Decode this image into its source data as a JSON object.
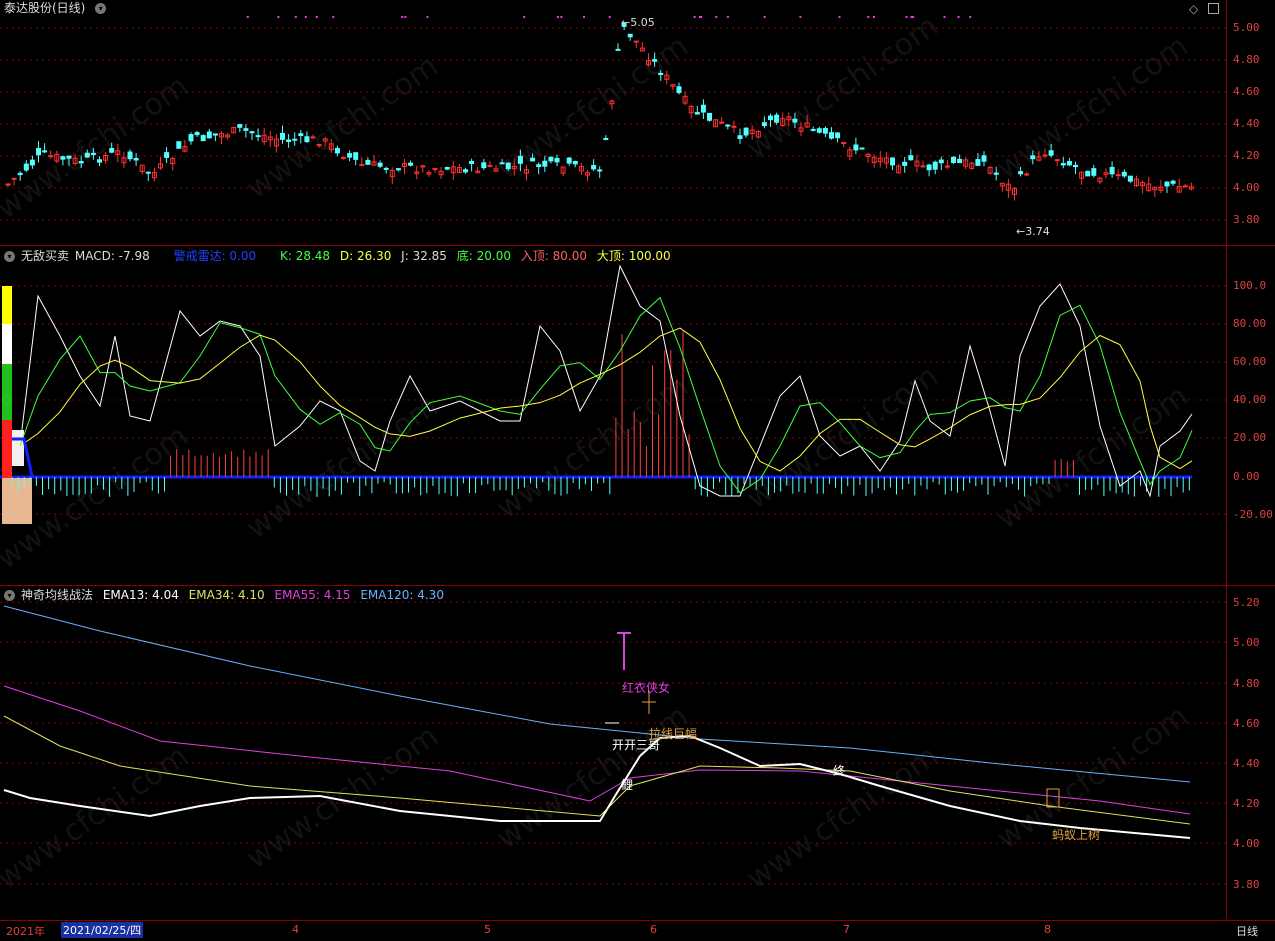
{
  "price_panel": {
    "title": "泰达股份(日线)",
    "ticks": [
      "5.00",
      "4.80",
      "4.60",
      "4.40",
      "4.20",
      "4.00",
      "3.80"
    ],
    "high_label": "5.05",
    "low_label": "3.74"
  },
  "indicator_panel": {
    "name": "无敌买卖",
    "macd": "MACD: -7.98",
    "radar": "警戒雷达: 0.00",
    "k": "K: 28.48",
    "d": "D: 26.30",
    "j": "J: 32.85",
    "di": "底: 20.00",
    "ru": "入顶: 80.00",
    "da": "大顶: 100.00",
    "ticks": [
      "100.0",
      "80.00",
      "60.00",
      "40.00",
      "20.00",
      "0.00",
      "-20.00"
    ]
  },
  "ema_panel": {
    "name": "神奇均线战法",
    "ema13": "EMA13: 4.04",
    "ema34": "EMA34: 4.10",
    "ema55": "EMA55: 4.15",
    "ema120": "EMA120: 4.30",
    "ticks": [
      "5.20",
      "5.00",
      "4.80",
      "4.60",
      "4.40",
      "4.20",
      "4.00",
      "3.80"
    ],
    "annotations": {
      "hongyi": "红衣侠女",
      "kaichuang": "开开三哥",
      "dao": "鲤",
      "zhong": "终",
      "mayi": "蚂蚁上树",
      "zhaju": "拉线巨幅"
    }
  },
  "bottom_bar": {
    "year": "2021年",
    "date": "2021/02/25/四",
    "months": [
      "4",
      "5",
      "6",
      "7",
      "8"
    ],
    "period": "日线"
  },
  "watermark": "www.cfchi.com",
  "colors": {
    "up": "#ff3030",
    "down": "#54ffff",
    "ema120": "#6ab0ff",
    "ema55": "#e040e0",
    "ema34": "#e0e060",
    "ema13": "#ffffff",
    "grid": "#8b0000"
  }
}
